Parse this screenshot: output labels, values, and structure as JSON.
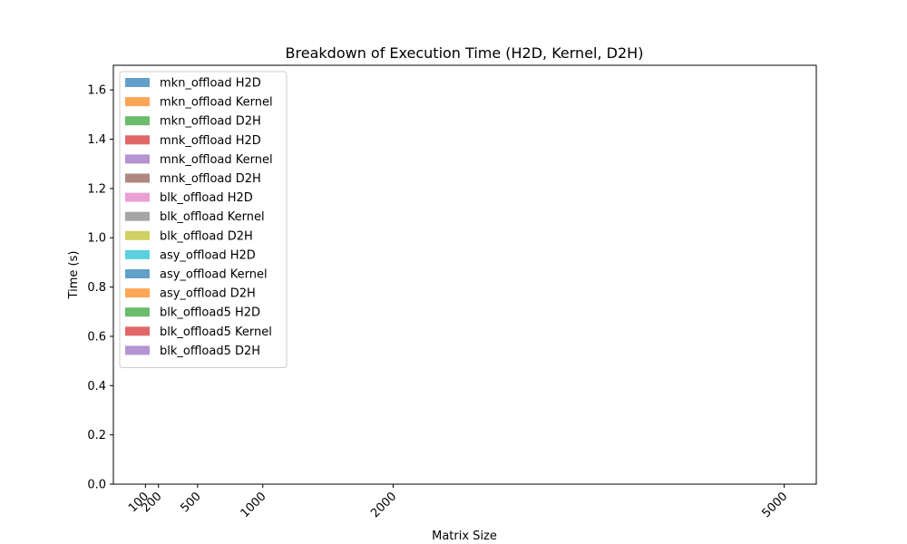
{
  "chart_data": {
    "type": "bar",
    "title": "Breakdown of Execution Time (H2D, Kernel, D2H)",
    "xlabel": "Matrix Size",
    "ylabel": "Time (s)",
    "x_ticks": [
      100,
      200,
      500,
      1000,
      2000,
      5000
    ],
    "x_tick_labels": [
      "100",
      "200",
      "500",
      "1000",
      "2000",
      "5000"
    ],
    "xlim": [
      -146,
      5246
    ],
    "ylim": [
      0,
      1.7
    ],
    "y_ticks": [
      0.0,
      0.2,
      0.4,
      0.6,
      0.8,
      1.0,
      1.2,
      1.4,
      1.6
    ],
    "y_tick_labels": [
      "0.0",
      "0.2",
      "0.4",
      "0.6",
      "0.8",
      "1.0",
      "1.2",
      "1.4",
      "1.6"
    ],
    "grid": false,
    "legend_position": "top-left",
    "series": [
      {
        "name": "mkn_offload H2D",
        "color": "#1f77b4",
        "values": []
      },
      {
        "name": "mkn_offload Kernel",
        "color": "#ff7f0e",
        "values": []
      },
      {
        "name": "mkn_offload D2H",
        "color": "#2ca02c",
        "values": []
      },
      {
        "name": "mnk_offload H2D",
        "color": "#d62728",
        "values": []
      },
      {
        "name": "mnk_offload Kernel",
        "color": "#9467bd",
        "values": []
      },
      {
        "name": "mnk_offload D2H",
        "color": "#8c564b",
        "values": []
      },
      {
        "name": "blk_offload H2D",
        "color": "#e377c2",
        "values": []
      },
      {
        "name": "blk_offload Kernel",
        "color": "#7f7f7f",
        "values": []
      },
      {
        "name": "blk_offload D2H",
        "color": "#bcbd22",
        "values": []
      },
      {
        "name": "asy_offload H2D",
        "color": "#17becf",
        "values": []
      },
      {
        "name": "asy_offload Kernel",
        "color": "#1f77b4",
        "values": []
      },
      {
        "name": "asy_offload D2H",
        "color": "#ff7f0e",
        "values": []
      },
      {
        "name": "blk_offload5 H2D",
        "color": "#2ca02c",
        "values": []
      },
      {
        "name": "blk_offload5 Kernel",
        "color": "#d62728",
        "values": []
      },
      {
        "name": "blk_offload5 D2H",
        "color": "#9467bd",
        "values": []
      }
    ]
  }
}
